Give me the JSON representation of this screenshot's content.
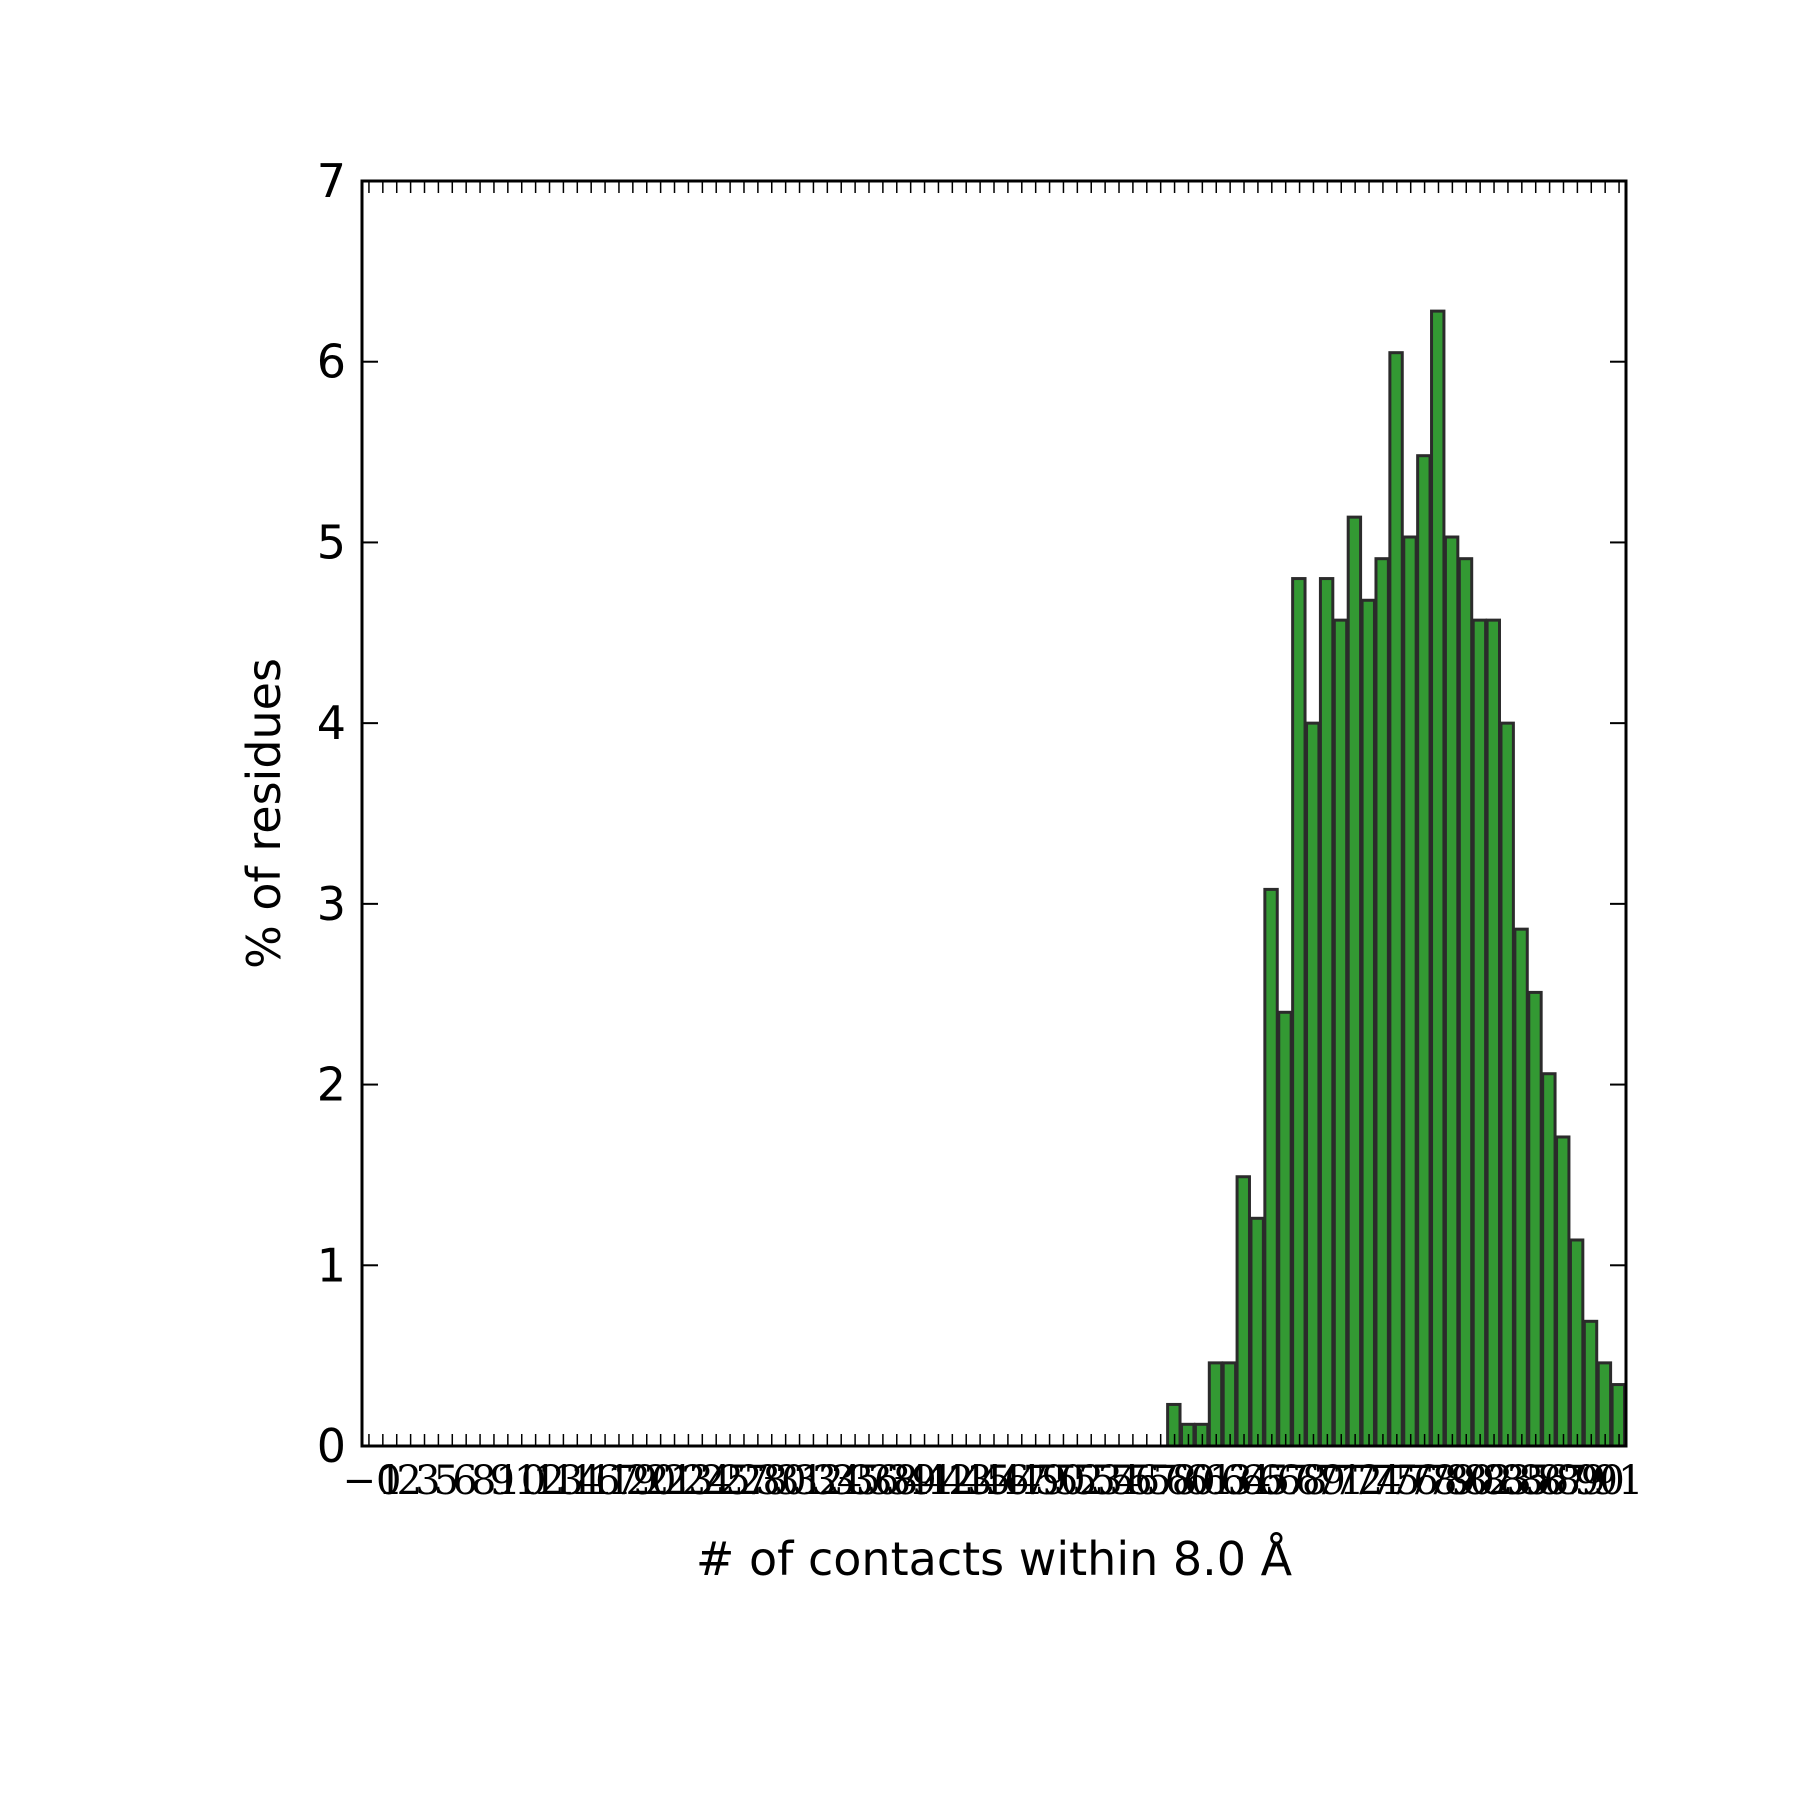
{
  "chart_data": {
    "type": "bar",
    "xlabel": "# of contacts within 8.0 Å",
    "ylabel": "% of residues",
    "ylim": [
      0,
      7
    ],
    "yticks": [
      "0",
      "1",
      "2",
      "3",
      "4",
      "5",
      "6",
      "7"
    ],
    "x_tick_labels": [
      "−0",
      "1",
      "2",
      "3",
      "5",
      "6",
      "8",
      "9",
      "10",
      "12",
      "13",
      "14",
      "16",
      "17",
      "19",
      "20",
      "21",
      "23",
      "24",
      "25",
      "27",
      "28",
      "30",
      "31",
      "32",
      "34",
      "35",
      "36",
      "38",
      "39",
      "41",
      "42",
      "43",
      "45",
      "46",
      "47",
      "49",
      "50",
      "52",
      "53",
      "54",
      "56",
      "57",
      "58",
      "60",
      "61",
      "63",
      "64",
      "65",
      "67",
      "68",
      "69",
      "71",
      "72",
      "74",
      "75",
      "76",
      "78",
      "79",
      "80",
      "82",
      "83",
      "85",
      "86",
      "87",
      "89",
      "90",
      "91"
    ],
    "grid": false,
    "colors": {
      "bar_fill": "#339933",
      "bar_edge": "#2b2b2b",
      "axis": "#000000"
    },
    "categories": [
      0,
      1,
      2,
      3,
      4,
      5,
      6,
      7,
      8,
      9,
      10,
      11,
      12,
      13,
      14,
      15,
      16,
      17,
      18,
      19,
      20,
      21,
      22,
      23,
      24,
      25,
      26,
      27,
      28,
      29,
      30,
      31,
      32,
      33,
      34,
      35,
      36,
      37,
      38,
      39,
      40,
      41,
      42,
      43,
      44,
      45,
      46,
      47,
      48,
      49,
      50,
      51,
      52,
      53,
      54,
      55,
      56,
      57,
      58,
      59,
      60,
      61,
      62,
      63,
      64,
      65,
      66,
      67,
      68,
      69,
      70,
      71,
      72,
      73,
      74,
      75,
      76,
      77,
      78,
      79,
      80,
      81,
      82,
      83,
      84,
      85,
      86,
      87,
      88,
      89,
      90
    ],
    "values": [
      0,
      0,
      0,
      0,
      0,
      0,
      0,
      0,
      0,
      0,
      0,
      0,
      0,
      0,
      0,
      0,
      0,
      0,
      0,
      0,
      0,
      0,
      0,
      0,
      0,
      0,
      0,
      0,
      0,
      0,
      0,
      0,
      0,
      0,
      0,
      0,
      0,
      0,
      0,
      0,
      0,
      0,
      0,
      0,
      0,
      0,
      0,
      0,
      0,
      0,
      0,
      0,
      0,
      0,
      0,
      0,
      0,
      0,
      0.23,
      0.12,
      0.12,
      0.46,
      0.46,
      1.49,
      1.26,
      3.08,
      2.4,
      4.8,
      4.0,
      4.8,
      4.57,
      5.14,
      4.68,
      4.91,
      6.05,
      5.03,
      5.48,
      6.28,
      5.03,
      4.91,
      4.57,
      4.57,
      4.0,
      2.86,
      2.51,
      2.06,
      1.71,
      1.14,
      0.69,
      0.46,
      0.34
    ]
  }
}
